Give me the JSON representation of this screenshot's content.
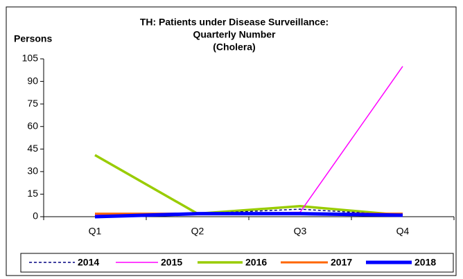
{
  "chart_data": {
    "type": "line",
    "title": [
      "TH: Patients under Disease Surveillance:",
      "Quarterly Number",
      "(Cholera)"
    ],
    "y_label": "Persons",
    "categories": [
      "Q1",
      "Q2",
      "Q3",
      "Q4"
    ],
    "series": [
      {
        "name": "2014",
        "color": "#000080",
        "dashed": true,
        "width": 1.5,
        "values": [
          0,
          2,
          5,
          1
        ]
      },
      {
        "name": "2015",
        "color": "#ff00ff",
        "width": 1.5,
        "values": [
          1,
          2,
          3,
          100
        ]
      },
      {
        "name": "2016",
        "color": "#99cc00",
        "width": 3.5,
        "values": [
          41,
          2,
          7,
          1
        ]
      },
      {
        "name": "2017",
        "color": "#ff6600",
        "width": 3,
        "values": [
          2,
          2,
          2,
          2
        ]
      },
      {
        "name": "2018",
        "color": "#0000ff",
        "width": 5,
        "values": [
          0,
          2,
          2,
          1
        ]
      }
    ],
    "ylim": [
      0,
      105
    ],
    "yticks": [
      0,
      15,
      30,
      45,
      60,
      75,
      90,
      105
    ]
  }
}
